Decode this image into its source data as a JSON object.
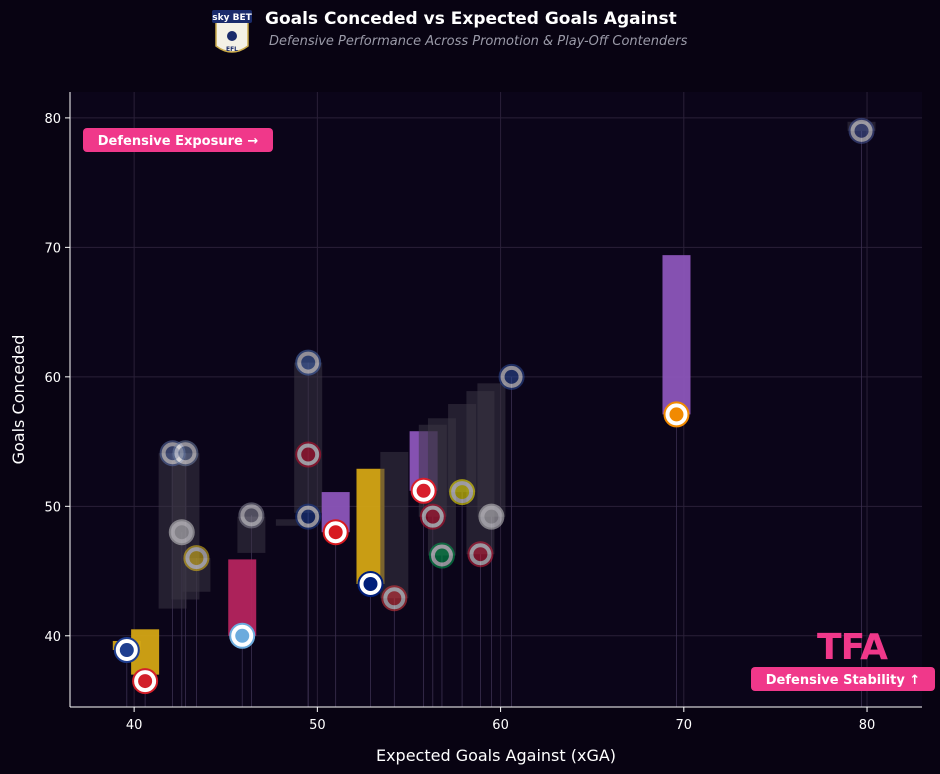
{
  "chart_data": {
    "type": "scatter",
    "title": "Goals Conceded vs Expected Goals Against",
    "subtitle": "Defensive Performance Across Promotion & Play-Off Contenders",
    "xlabel": "Expected Goals Against (xGA)",
    "ylabel": "Goals Conceded",
    "xlim": [
      36.5,
      83
    ],
    "ylim": [
      34.5,
      82
    ],
    "xticks": [
      "40",
      "50",
      "60",
      "70",
      "80"
    ],
    "yticks": [
      "40",
      "50",
      "60",
      "70",
      "80"
    ],
    "grid": true,
    "annotations": {
      "top_left": "Defensive Exposure →",
      "bottom_right": "Defensive Stability ↑"
    },
    "brand_mark": "TFA",
    "points": [
      {
        "x": 39.6,
        "y": 38.9,
        "accent": "#1f3e8f",
        "bar": "#d4a514",
        "highlight": true
      },
      {
        "x": 40.6,
        "y": 36.5,
        "accent": "#d2202a",
        "bar": "#d4a514",
        "highlight": true
      },
      {
        "x": 42.1,
        "y": 54.1,
        "accent": "#5a6fa8",
        "bar": "#3a3444",
        "highlight": false
      },
      {
        "x": 42.8,
        "y": 54.1,
        "accent": "#6d7fa3",
        "bar": "#3a3444",
        "highlight": false
      },
      {
        "x": 42.6,
        "y": 48.0,
        "accent": "#cccccc",
        "bar": "#3a3444",
        "highlight": false
      },
      {
        "x": 43.4,
        "y": 46.0,
        "accent": "#e8c21a",
        "bar": "#3a3444",
        "highlight": false
      },
      {
        "x": 45.9,
        "y": 40.0,
        "accent": "#6cabdd",
        "bar": "#b5245e",
        "highlight": true
      },
      {
        "x": 46.4,
        "y": 49.3,
        "accent": "#8a8a99",
        "bar": "#3a3444",
        "highlight": false
      },
      {
        "x": 49.5,
        "y": 61.1,
        "accent": "#4a6db3",
        "bar": "#3a3444",
        "highlight": false
      },
      {
        "x": 49.5,
        "y": 54.0,
        "accent": "#c8102e",
        "bar": "#3a3444",
        "highlight": false
      },
      {
        "x": 49.5,
        "y": 49.2,
        "accent": "#1c3f94",
        "bar": "#3a3444",
        "highlight": false
      },
      {
        "x": 51.0,
        "y": 48.0,
        "accent": "#d71920",
        "bar": "#8c55b9",
        "highlight": true
      },
      {
        "x": 52.9,
        "y": 44.0,
        "accent": "#001e7a",
        "bar": "#d4a514",
        "highlight": true
      },
      {
        "x": 54.2,
        "y": 42.9,
        "accent": "#e03a3e",
        "bar": "#3a3444",
        "highlight": false
      },
      {
        "x": 55.8,
        "y": 51.2,
        "accent": "#d81e2c",
        "bar": "#8c55b9",
        "highlight": true
      },
      {
        "x": 56.3,
        "y": 49.2,
        "accent": "#c8102e",
        "bar": "#3a3444",
        "highlight": false
      },
      {
        "x": 56.8,
        "y": 46.2,
        "accent": "#00a650",
        "bar": "#3a3444",
        "highlight": false
      },
      {
        "x": 57.9,
        "y": 51.1,
        "accent": "#fff200",
        "bar": "#3a3444",
        "highlight": false
      },
      {
        "x": 58.9,
        "y": 46.3,
        "accent": "#d4213d",
        "bar": "#3a3444",
        "highlight": false
      },
      {
        "x": 59.5,
        "y": 49.2,
        "accent": "#cccccc",
        "bar": "#3a3444",
        "highlight": false
      },
      {
        "x": 60.6,
        "y": 60.0,
        "accent": "#2c4d9b",
        "bar": "#3a3444",
        "highlight": false
      },
      {
        "x": 69.6,
        "y": 57.1,
        "accent": "#f18a01",
        "bar": "#8c55b9",
        "highlight": true
      },
      {
        "x": 79.7,
        "y": 79.0,
        "accent": "#4a5a9c",
        "bar": "#3a3444",
        "highlight": false
      }
    ],
    "bars": [
      {
        "x": 39.6,
        "y0": 38.9,
        "y1": 39.6,
        "color": "#d4a514",
        "w": 1.0
      },
      {
        "x": 40.6,
        "y0": 37.0,
        "y1": 40.5,
        "color": "#d4a514",
        "w": 1.5
      },
      {
        "x": 42.1,
        "y0": 42.1,
        "y1": 54.1,
        "color": "#3a3444",
        "w": 1.5
      },
      {
        "x": 42.8,
        "y0": 42.8,
        "y1": 54.1,
        "color": "#3a3444",
        "w": 1.5
      },
      {
        "x": 43.4,
        "y0": 43.4,
        "y1": 46.0,
        "color": "#3a3444",
        "w": 1.5
      },
      {
        "x": 45.9,
        "y0": 40.0,
        "y1": 45.9,
        "color": "#b5245e",
        "w": 1.5
      },
      {
        "x": 46.4,
        "y0": 46.4,
        "y1": 49.2,
        "color": "#3a3444",
        "w": 1.5
      },
      {
        "x": 48.5,
        "y0": 48.5,
        "y1": 49.0,
        "color": "#3a3444",
        "w": 1.5
      },
      {
        "x": 49.5,
        "y0": 49.5,
        "y1": 61.1,
        "color": "#3a3444",
        "w": 1.5
      },
      {
        "x": 51.0,
        "y0": 48.0,
        "y1": 51.1,
        "color": "#8c55b9",
        "w": 1.5
      },
      {
        "x": 52.9,
        "y0": 44.0,
        "y1": 52.9,
        "color": "#d4a514",
        "w": 1.5
      },
      {
        "x": 54.2,
        "y0": 42.9,
        "y1": 54.2,
        "color": "#3a3444",
        "w": 1.5
      },
      {
        "x": 55.8,
        "y0": 51.2,
        "y1": 55.8,
        "color": "#8c55b9",
        "w": 1.5
      },
      {
        "x": 56.3,
        "y0": 49.2,
        "y1": 56.3,
        "color": "#3a3444",
        "w": 1.5
      },
      {
        "x": 56.8,
        "y0": 46.2,
        "y1": 56.8,
        "color": "#3a3444",
        "w": 1.5
      },
      {
        "x": 57.9,
        "y0": 51.1,
        "y1": 57.9,
        "color": "#3a3444",
        "w": 1.5
      },
      {
        "x": 58.9,
        "y0": 46.3,
        "y1": 58.9,
        "color": "#3a3444",
        "w": 1.5
      },
      {
        "x": 59.5,
        "y0": 49.2,
        "y1": 59.5,
        "color": "#3a3444",
        "w": 1.5
      },
      {
        "x": 69.6,
        "y0": 57.1,
        "y1": 69.4,
        "color": "#8c55b9",
        "w": 1.5
      },
      {
        "x": 79.7,
        "y0": 79.7,
        "y1": 79.0,
        "color": "#3a3444",
        "w": 1.5
      }
    ]
  },
  "colors": {
    "background": "#080312",
    "accent": "#f0388a",
    "axis": "#ffffff",
    "grid": "#2a2038"
  },
  "logo": {
    "name": "efl-sky-bet-championship-logo",
    "top_text": "sky BET",
    "bottom_text": "EFL"
  },
  "icons": [
    "club-crest-icon",
    "efl-logo-icon",
    "tfa-brand-logo"
  ]
}
